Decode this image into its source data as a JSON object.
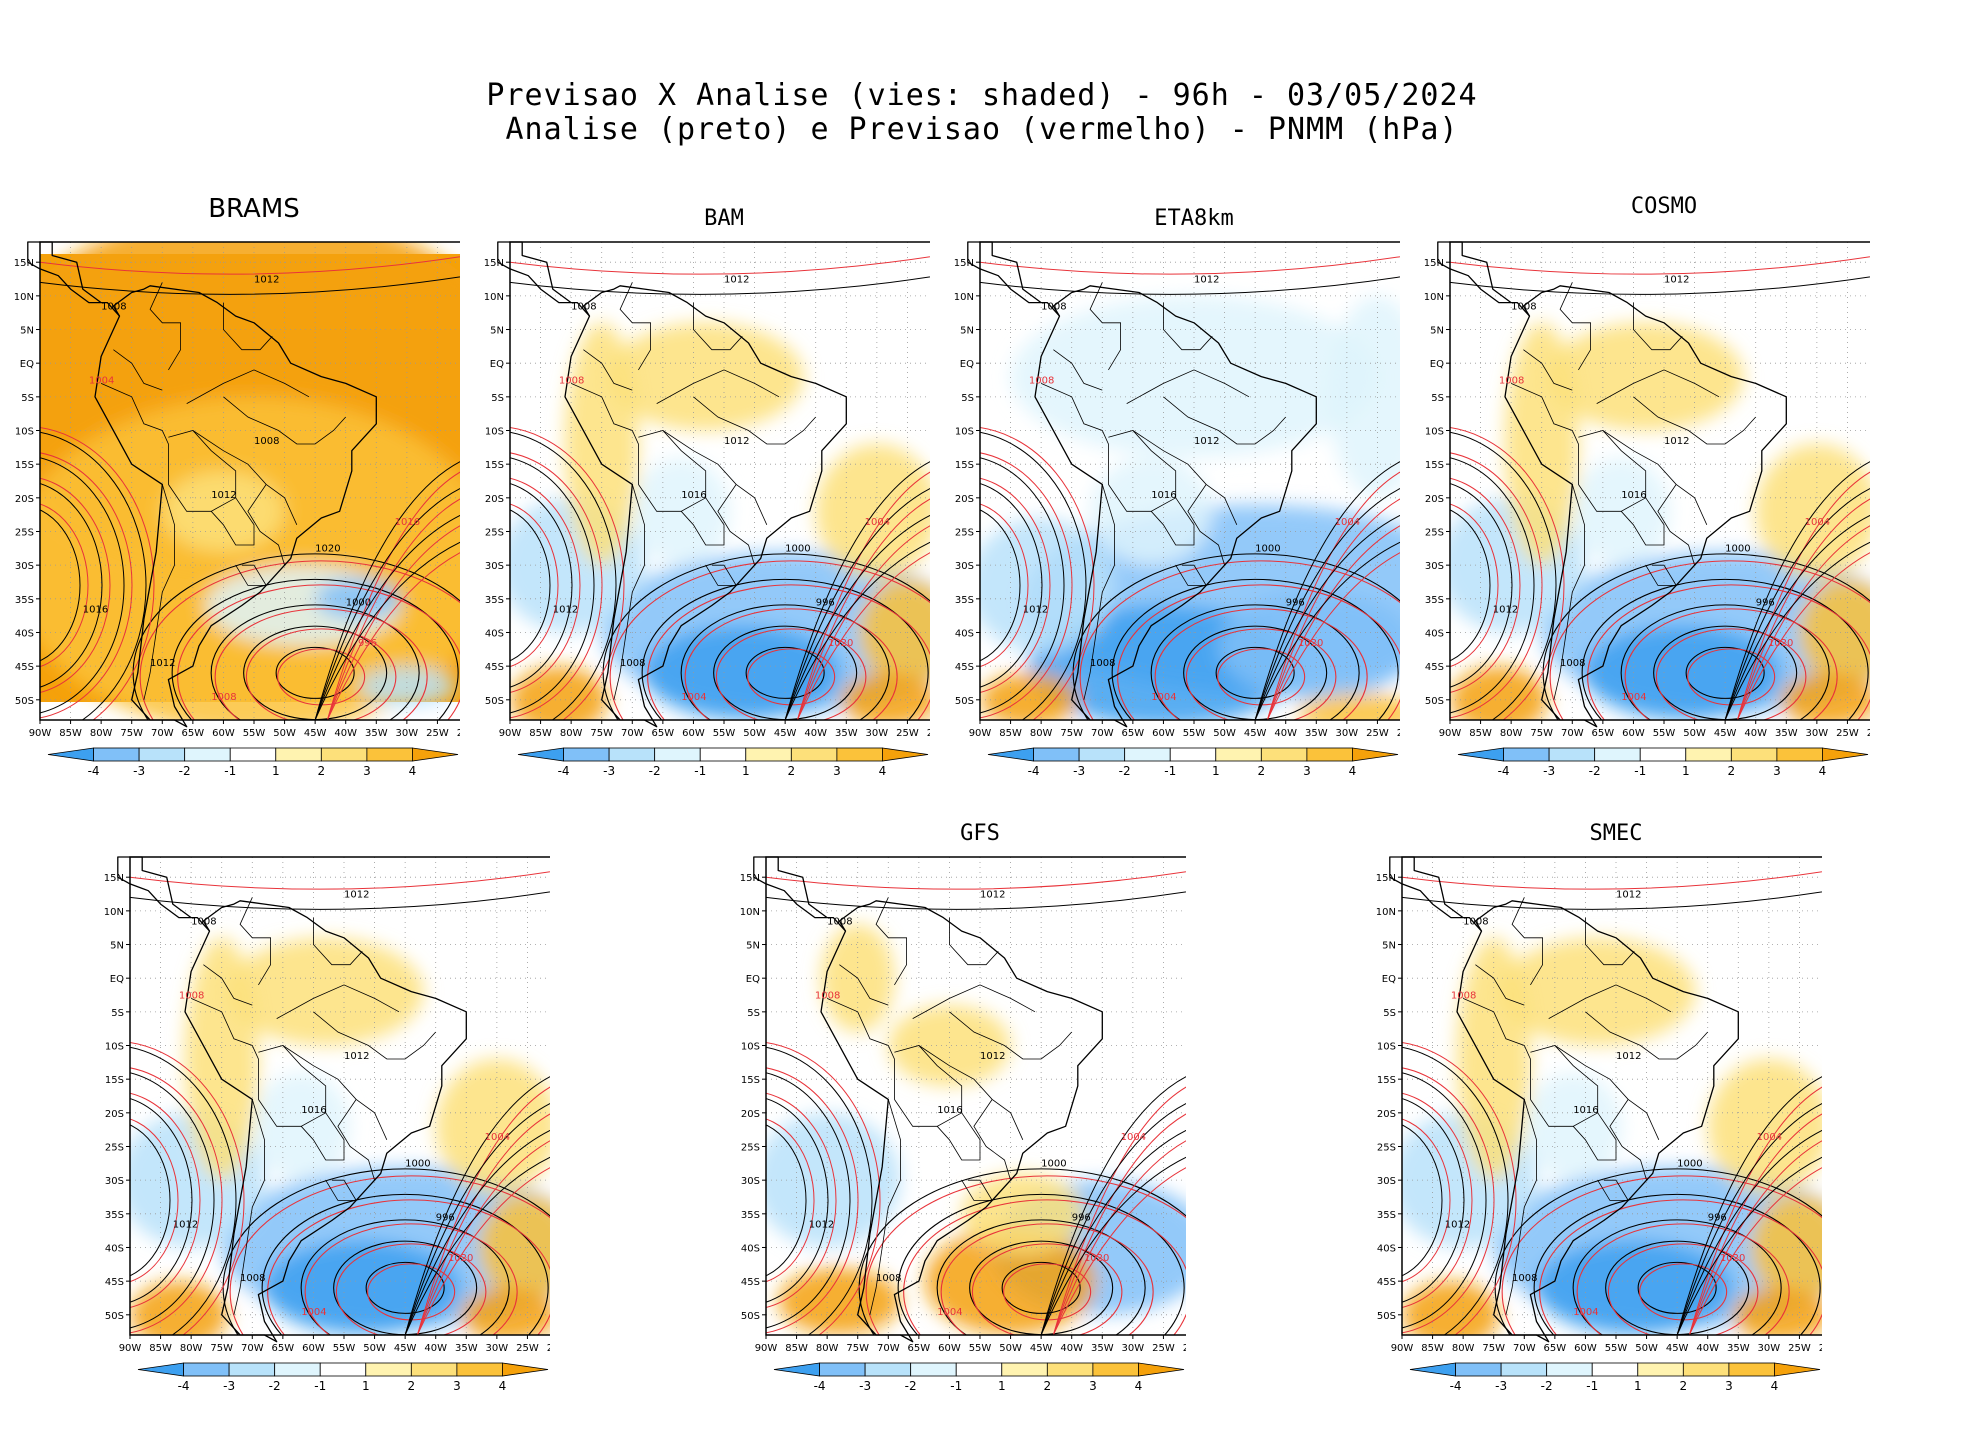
{
  "title": {
    "line1": "Previsao X Analise (vies: shaded) - 96h - 03/05/2024",
    "line2": "Analise (preto) e Previsao (vermelho) - PNMM (hPa)"
  },
  "axes": {
    "lat_labels": [
      "15N",
      "10N",
      "5N",
      "EQ",
      "5S",
      "10S",
      "15S",
      "20S",
      "25S",
      "30S",
      "35S",
      "40S",
      "45S",
      "50S"
    ],
    "lon_labels": [
      "90W",
      "85W",
      "80W",
      "75W",
      "70W",
      "65W",
      "60W",
      "55W",
      "50W",
      "45W",
      "40W",
      "35W",
      "30W",
      "25W",
      "20W"
    ]
  },
  "colorbar": {
    "labels": [
      "-4",
      "-3",
      "-2",
      "-1",
      "1",
      "2",
      "3",
      "4"
    ],
    "colors": [
      "#3da0f0",
      "#80c0f8",
      "#b8e2fa",
      "#dff5fd",
      "#ffffff",
      "#fff3b0",
      "#fde07a",
      "#fbc23a",
      "#f5a10a"
    ]
  },
  "legend": {
    "analysis_color": "#000000",
    "forecast_color": "#e8333a"
  },
  "panels": [
    {
      "name": "BRAMS",
      "bias": "warm",
      "isobars": [
        "1008",
        "1012",
        "1004",
        "1008",
        "1012",
        "1016",
        "1020",
        "1000",
        "996",
        "1016",
        "1012",
        "1008",
        "1020"
      ]
    },
    {
      "name": "BAM",
      "bias": "mixed",
      "isobars": [
        "1008",
        "1012",
        "1008",
        "1012",
        "1016",
        "1004",
        "1000",
        "996",
        "1020",
        "1012",
        "1008",
        "1004"
      ]
    },
    {
      "name": "ETA8km",
      "bias": "cold",
      "isobars": [
        "1008",
        "1012",
        "1008",
        "1012",
        "1016",
        "1004",
        "1000",
        "996",
        "1020",
        "1012",
        "1008",
        "1004"
      ]
    },
    {
      "name": "COSMO",
      "bias": "mixed",
      "isobars": [
        "1008",
        "1012",
        "1008",
        "1012",
        "1016",
        "1004",
        "1000",
        "996",
        "1020",
        "1012",
        "1008",
        "1004"
      ]
    },
    {
      "name": "",
      "bias": "mixed",
      "isobars": [
        "1008",
        "1012",
        "1008",
        "1012",
        "1016",
        "1004",
        "1000",
        "996",
        "1020",
        "1012",
        "1008",
        "1004"
      ]
    },
    {
      "name": "GFS",
      "bias": "warm-south",
      "isobars": [
        "1008",
        "1012",
        "1008",
        "1012",
        "1016",
        "1004",
        "1000",
        "996",
        "1020",
        "1012",
        "1008",
        "1004"
      ]
    },
    {
      "name": "SMEC",
      "bias": "mixed",
      "isobars": [
        "1008",
        "1012",
        "1008",
        "1012",
        "1016",
        "1004",
        "1000",
        "996",
        "1020",
        "1012",
        "1008",
        "1004"
      ]
    }
  ]
}
